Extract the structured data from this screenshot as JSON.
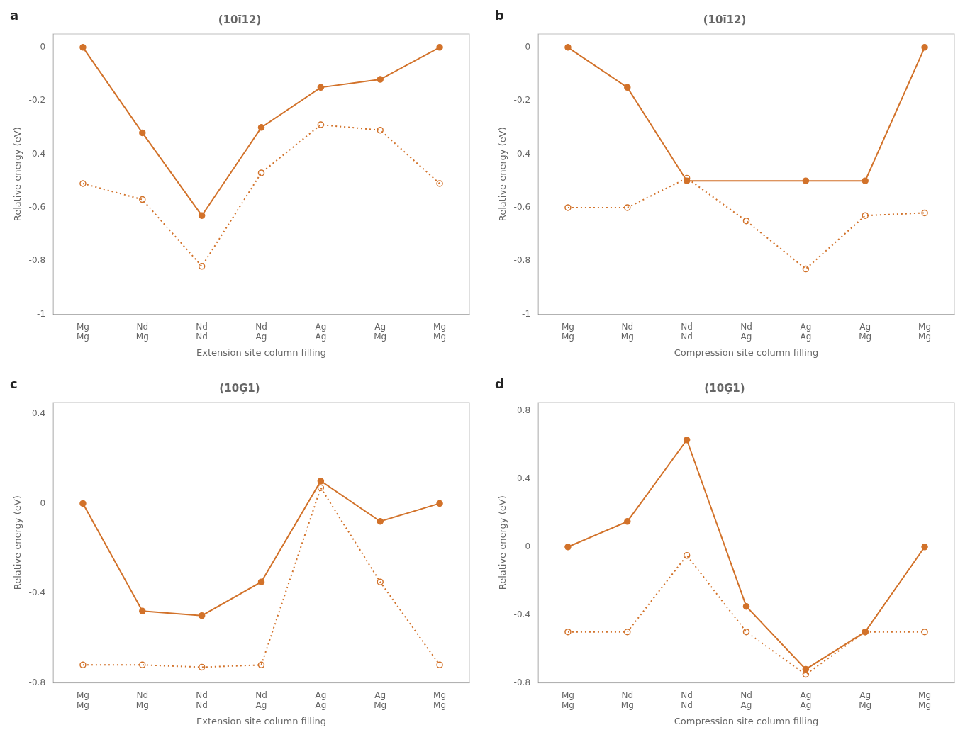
{
  "chart_data": [
    {
      "type": "line",
      "title": "(10ĭ12)",
      "annotations": [
        "a"
      ],
      "xlabel": "Extension site column filling",
      "ylabel": "Relative energy (eV)",
      "categories": [
        [
          "Mg",
          "Mg"
        ],
        [
          "Nd",
          "Mg"
        ],
        [
          "Nd",
          "Nd"
        ],
        [
          "Nd",
          "Ag"
        ],
        [
          "Ag",
          "Ag"
        ],
        [
          "Ag",
          "Mg"
        ],
        [
          "Mg",
          "Mg"
        ]
      ],
      "series": [
        {
          "values": [
            -0.51,
            -0.57,
            -0.82,
            -0.47,
            -0.29,
            -0.31,
            -0.51
          ],
          "color": "#D2722A",
          "line_style": "dotted",
          "marker": "open_circle"
        },
        {
          "values": [
            0.0,
            -0.32,
            -0.63,
            -0.3,
            -0.15,
            -0.12,
            0.0
          ],
          "color": "#D2722A",
          "line_style": "solid",
          "marker": "circle"
        }
      ],
      "ylim": [
        -1.0,
        0.05
      ],
      "yticks": [
        0.0,
        -0.2,
        -0.4,
        -0.6,
        -0.8,
        -1.0
      ],
      "grid": false
    },
    {
      "type": "line",
      "title": "(10ĭ12)",
      "annotations": [
        "b"
      ],
      "xlabel": "Compression site column filling",
      "ylabel": "Relative energy (eV)",
      "categories": [
        [
          "Mg",
          "Mg"
        ],
        [
          "Nd",
          "Mg"
        ],
        [
          "Nd",
          "Nd"
        ],
        [
          "Nd",
          "Ag"
        ],
        [
          "Ag",
          "Ag"
        ],
        [
          "Ag",
          "Mg"
        ],
        [
          "Mg",
          "Mg"
        ]
      ],
      "series": [
        {
          "values": [
            -0.6,
            -0.6,
            -0.49,
            -0.65,
            -0.83,
            -0.63,
            -0.62
          ],
          "color": "#D2722A",
          "line_style": "dotted",
          "marker": "open_circle"
        },
        {
          "values": [
            0.0,
            -0.15,
            -0.5,
            null,
            -0.5,
            -0.5,
            0.0
          ],
          "color": "#D2722A",
          "line_style": "solid",
          "marker": "circle"
        }
      ],
      "ylim": [
        -1.0,
        0.05
      ],
      "yticks": [
        0.0,
        -0.2,
        -0.4,
        -0.6,
        -0.8,
        -1.0
      ],
      "grid": false
    },
    {
      "type": "line",
      "title": "(10Ģ1)",
      "annotations": [
        "c"
      ],
      "xlabel": "Extension site column filling",
      "ylabel": "Relative energy (eV)",
      "categories": [
        [
          "Mg",
          "Mg"
        ],
        [
          "Nd",
          "Mg"
        ],
        [
          "Nd",
          "Nd"
        ],
        [
          "Nd",
          "Ag"
        ],
        [
          "Ag",
          "Ag"
        ],
        [
          "Ag",
          "Mg"
        ],
        [
          "Mg",
          "Mg"
        ]
      ],
      "series": [
        {
          "values": [
            -0.72,
            -0.72,
            -0.73,
            -0.72,
            0.07,
            -0.35,
            -0.72
          ],
          "color": "#D2722A",
          "line_style": "dotted",
          "marker": "open_circle"
        },
        {
          "values": [
            0.0,
            -0.48,
            -0.5,
            -0.35,
            0.1,
            -0.08,
            0.0
          ],
          "color": "#D2722A",
          "line_style": "solid",
          "marker": "circle"
        }
      ],
      "ylim": [
        -0.8,
        0.45
      ],
      "yticks": [
        0.4,
        0.0,
        -0.4,
        -0.8
      ],
      "grid": false
    },
    {
      "type": "line",
      "title": "(10Ģ1)",
      "annotations": [
        "d"
      ],
      "xlabel": "Compression site column filling",
      "ylabel": "Relative energy (eV)",
      "categories": [
        [
          "Mg",
          "Mg"
        ],
        [
          "Nd",
          "Mg"
        ],
        [
          "Nd",
          "Nd"
        ],
        [
          "Nd",
          "Ag"
        ],
        [
          "Ag",
          "Ag"
        ],
        [
          "Ag",
          "Mg"
        ],
        [
          "Mg",
          "Mg"
        ]
      ],
      "series": [
        {
          "values": [
            -0.5,
            -0.5,
            -0.05,
            -0.5,
            -0.75,
            -0.5,
            -0.5
          ],
          "color": "#D2722A",
          "line_style": "dotted",
          "marker": "open_circle"
        },
        {
          "values": [
            0.0,
            0.15,
            0.63,
            -0.35,
            -0.72,
            -0.5,
            0.0
          ],
          "color": "#D2722A",
          "line_style": "solid",
          "marker": "circle"
        }
      ],
      "ylim": [
        -0.8,
        0.85
      ],
      "yticks": [
        0.8,
        0.4,
        0.0,
        -0.4,
        -0.8
      ],
      "grid": false
    }
  ]
}
